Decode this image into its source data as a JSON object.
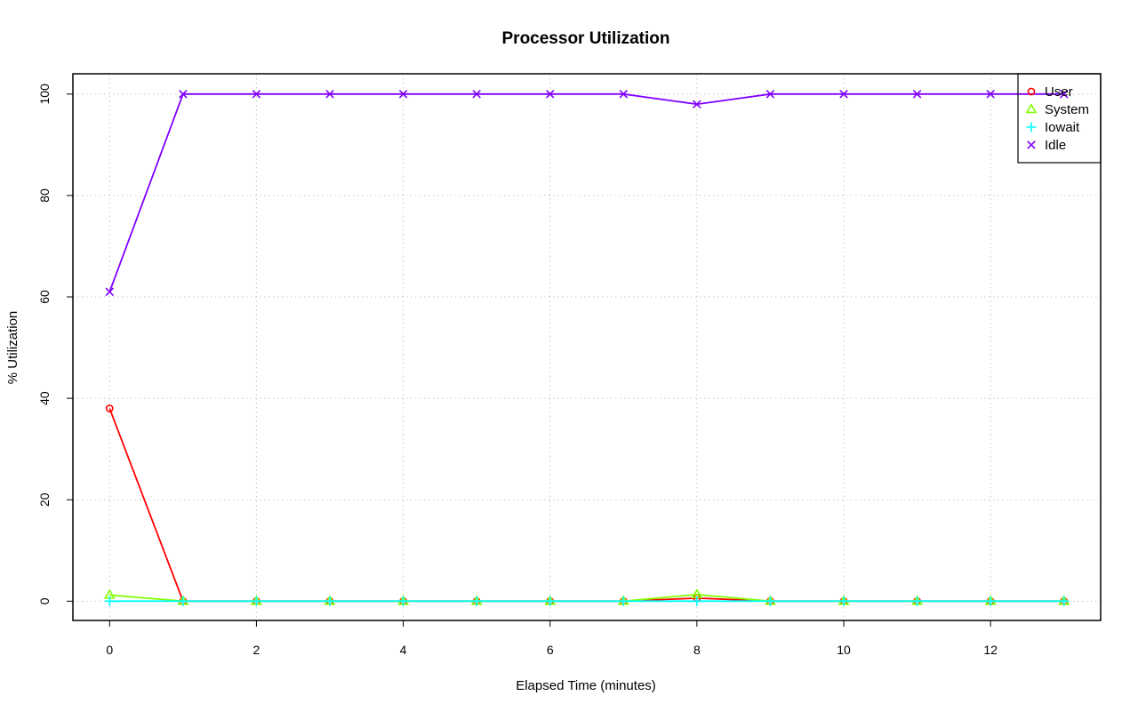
{
  "chart_data": {
    "type": "line",
    "title": "Processor Utilization",
    "xlabel": "Elapsed Time (minutes)",
    "ylabel": "% Utilization",
    "x": [
      0,
      1,
      2,
      3,
      4,
      5,
      6,
      7,
      8,
      9,
      10,
      11,
      12,
      13
    ],
    "xlim": [
      -0.5,
      13.5
    ],
    "ylim": [
      -3.8,
      104
    ],
    "xticks": [
      0,
      2,
      4,
      6,
      8,
      10,
      12
    ],
    "yticks": [
      0,
      20,
      40,
      60,
      80,
      100
    ],
    "grid": true,
    "legend_position": "top-right",
    "series": [
      {
        "name": "User",
        "color": "#ff0000",
        "marker": "circle",
        "values": [
          38,
          0,
          0,
          0,
          0,
          0,
          0,
          0,
          0.6,
          0,
          0,
          0,
          0,
          0
        ]
      },
      {
        "name": "System",
        "color": "#80ff00",
        "marker": "triangle",
        "values": [
          1.2,
          0,
          0,
          0,
          0,
          0,
          0,
          0,
          1.3,
          0,
          0,
          0,
          0,
          0
        ]
      },
      {
        "name": "Iowait",
        "color": "#00ffff",
        "marker": "plus",
        "values": [
          0,
          0,
          0,
          0,
          0,
          0,
          0,
          0,
          0,
          0,
          0,
          0,
          0,
          0
        ]
      },
      {
        "name": "Idle",
        "color": "#8000ff",
        "marker": "cross",
        "values": [
          61,
          100,
          100,
          100,
          100,
          100,
          100,
          100,
          98,
          100,
          100,
          100,
          100,
          100
        ]
      }
    ]
  }
}
